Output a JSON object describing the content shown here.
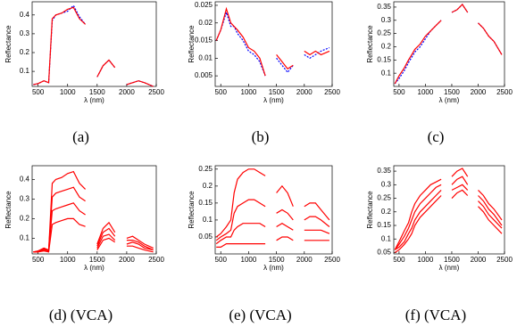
{
  "chart_data": [
    {
      "type": "line",
      "caption": "(a)",
      "xlabel": "λ (nm)",
      "ylabel": "Reflectance",
      "x": [
        420,
        500,
        600,
        680,
        740,
        800,
        900,
        1000,
        1100,
        1200,
        1300,
        1400,
        1500,
        1600,
        1700,
        1800,
        1900,
        2000,
        2100,
        2200,
        2300,
        2450
      ],
      "xlim": [
        400,
        2500
      ],
      "xticks": [
        500,
        1000,
        1500,
        2000,
        2500
      ],
      "ylim": [
        0.02,
        0.47
      ],
      "yticks": [
        0.1,
        0.2,
        0.3,
        0.4
      ],
      "series": [
        {
          "color": "#0000ff",
          "style": "dashed",
          "values": [
            0.03,
            0.035,
            0.05,
            0.04,
            0.37,
            0.4,
            0.41,
            0.42,
            0.45,
            0.39,
            0.35,
            null,
            0.07,
            0.13,
            0.16,
            0.12,
            null,
            0.03,
            0.04,
            0.05,
            0.04,
            0.02
          ]
        },
        {
          "color": "#ff0000",
          "style": "solid",
          "values": [
            0.03,
            0.035,
            0.05,
            0.04,
            0.38,
            0.4,
            0.41,
            0.43,
            0.44,
            0.38,
            0.35,
            null,
            0.07,
            0.13,
            0.16,
            0.12,
            null,
            0.03,
            0.04,
            0.05,
            0.04,
            0.02
          ]
        }
      ]
    },
    {
      "type": "line",
      "caption": "(b)",
      "xlabel": "λ (nm)",
      "ylabel": "Reflectance",
      "x": [
        420,
        500,
        600,
        680,
        740,
        800,
        900,
        1000,
        1100,
        1200,
        1300,
        1400,
        1500,
        1600,
        1700,
        1800,
        1900,
        2000,
        2100,
        2200,
        2300,
        2450
      ],
      "xlim": [
        400,
        2500
      ],
      "xticks": [
        500,
        1000,
        1500,
        2000,
        2500
      ],
      "ylim": [
        0.002,
        0.026
      ],
      "yticks": [
        0.005,
        0.01,
        0.015,
        0.02,
        0.025
      ],
      "series": [
        {
          "color": "#0000ff",
          "style": "dashed",
          "values": [
            0.015,
            0.018,
            0.023,
            0.019,
            0.019,
            0.017,
            0.015,
            0.012,
            0.011,
            0.009,
            0.005,
            null,
            0.01,
            0.008,
            0.006,
            0.008,
            null,
            0.011,
            0.01,
            0.011,
            0.012,
            0.013
          ]
        },
        {
          "color": "#ff0000",
          "style": "solid",
          "values": [
            0.015,
            0.018,
            0.024,
            0.02,
            0.019,
            0.018,
            0.016,
            0.013,
            0.012,
            0.01,
            0.005,
            null,
            0.011,
            0.009,
            0.007,
            0.008,
            null,
            0.012,
            0.011,
            0.012,
            0.011,
            0.012
          ]
        }
      ]
    },
    {
      "type": "line",
      "caption": "(c)",
      "xlabel": "λ (nm)",
      "ylabel": "Reflectance",
      "x": [
        420,
        500,
        600,
        680,
        740,
        800,
        900,
        1000,
        1100,
        1200,
        1300,
        1400,
        1500,
        1600,
        1700,
        1800,
        1900,
        2000,
        2100,
        2200,
        2300,
        2450
      ],
      "xlim": [
        400,
        2500
      ],
      "xticks": [
        500,
        1000,
        1500,
        2000,
        2500
      ],
      "ylim": [
        0.05,
        0.37
      ],
      "yticks": [
        0.1,
        0.15,
        0.2,
        0.25,
        0.3,
        0.35
      ],
      "series": [
        {
          "color": "#0000ff",
          "style": "dashed",
          "values": [
            0.06,
            0.08,
            0.11,
            0.14,
            0.16,
            0.18,
            0.2,
            0.23,
            0.26,
            0.28,
            0.3,
            null,
            0.33,
            0.34,
            0.36,
            0.33,
            null,
            0.29,
            0.27,
            0.24,
            0.22,
            0.17
          ]
        },
        {
          "color": "#ff0000",
          "style": "solid",
          "values": [
            0.06,
            0.09,
            0.12,
            0.15,
            0.17,
            0.19,
            0.21,
            0.24,
            0.26,
            0.28,
            0.3,
            null,
            0.33,
            0.34,
            0.36,
            0.33,
            null,
            0.29,
            0.27,
            0.24,
            0.22,
            0.17
          ]
        }
      ]
    },
    {
      "type": "line",
      "caption": "(d) (VCA)",
      "xlabel": "λ (nm)",
      "ylabel": "Reflectance",
      "x": [
        420,
        500,
        600,
        680,
        740,
        800,
        900,
        1000,
        1100,
        1200,
        1300,
        1400,
        1500,
        1600,
        1700,
        1800,
        1900,
        2000,
        2100,
        2200,
        2300,
        2450
      ],
      "xlim": [
        400,
        2500
      ],
      "xticks": [
        500,
        1000,
        1500,
        2000,
        2500
      ],
      "ylim": [
        0.02,
        0.47
      ],
      "yticks": [
        0.1,
        0.2,
        0.3,
        0.4
      ],
      "series": [
        {
          "color": "#ff0000",
          "style": "solid",
          "values": [
            0.03,
            0.035,
            0.05,
            0.04,
            0.38,
            0.4,
            0.41,
            0.43,
            0.44,
            0.38,
            0.35,
            null,
            0.07,
            0.15,
            0.18,
            0.13,
            null,
            0.1,
            0.11,
            0.09,
            0.07,
            0.05
          ]
        },
        {
          "color": "#ff0000",
          "style": "solid",
          "values": [
            0.03,
            0.035,
            0.045,
            0.04,
            0.31,
            0.33,
            0.34,
            0.35,
            0.36,
            0.31,
            0.29,
            null,
            0.06,
            0.13,
            0.15,
            0.11,
            null,
            0.09,
            0.09,
            0.08,
            0.06,
            0.04
          ]
        },
        {
          "color": "#ff0000",
          "style": "solid",
          "values": [
            0.03,
            0.03,
            0.04,
            0.035,
            0.24,
            0.25,
            0.26,
            0.27,
            0.28,
            0.24,
            0.22,
            null,
            0.05,
            0.11,
            0.12,
            0.09,
            null,
            0.07,
            0.08,
            0.07,
            0.05,
            0.04
          ]
        },
        {
          "color": "#ff0000",
          "style": "solid",
          "values": [
            0.03,
            0.03,
            0.035,
            0.03,
            0.17,
            0.18,
            0.19,
            0.2,
            0.2,
            0.17,
            0.16,
            null,
            0.04,
            0.09,
            0.1,
            0.08,
            null,
            0.06,
            0.06,
            0.05,
            0.04,
            0.03
          ]
        }
      ]
    },
    {
      "type": "line",
      "caption": "(e) (VCA)",
      "xlabel": "λ (nm)",
      "ylabel": "Reflectance",
      "x": [
        420,
        500,
        600,
        680,
        740,
        800,
        900,
        1000,
        1100,
        1200,
        1300,
        1400,
        1500,
        1600,
        1700,
        1800,
        1900,
        2000,
        2100,
        2200,
        2300,
        2450
      ],
      "xlim": [
        400,
        2500
      ],
      "xticks": [
        500,
        1000,
        1500,
        2000,
        2500
      ],
      "ylim": [
        0,
        0.26
      ],
      "yticks": [
        0.05,
        0.1,
        0.15,
        0.2,
        0.25
      ],
      "series": [
        {
          "color": "#ff0000",
          "style": "solid",
          "values": [
            0.05,
            0.06,
            0.08,
            0.1,
            0.18,
            0.22,
            0.24,
            0.25,
            0.25,
            0.24,
            0.23,
            null,
            0.18,
            0.2,
            0.18,
            0.14,
            null,
            0.14,
            0.15,
            0.15,
            0.13,
            0.1
          ]
        },
        {
          "color": "#ff0000",
          "style": "solid",
          "values": [
            0.04,
            0.05,
            0.06,
            0.07,
            0.12,
            0.14,
            0.15,
            0.16,
            0.16,
            0.15,
            0.14,
            null,
            0.12,
            0.13,
            0.12,
            0.1,
            null,
            0.1,
            0.11,
            0.11,
            0.1,
            0.08
          ]
        },
        {
          "color": "#ff0000",
          "style": "solid",
          "values": [
            0.03,
            0.04,
            0.05,
            0.05,
            0.07,
            0.08,
            0.09,
            0.09,
            0.09,
            0.09,
            0.08,
            null,
            0.08,
            0.09,
            0.08,
            0.07,
            null,
            0.07,
            0.07,
            0.07,
            0.07,
            0.06
          ]
        },
        {
          "color": "#ff0000",
          "style": "solid",
          "values": [
            0.02,
            0.02,
            0.03,
            0.03,
            0.03,
            0.03,
            0.03,
            0.03,
            0.03,
            0.03,
            0.03,
            null,
            0.04,
            0.05,
            0.05,
            0.04,
            null,
            0.04,
            0.04,
            0.04,
            0.04,
            0.04
          ]
        }
      ]
    },
    {
      "type": "line",
      "caption": "(f) (VCA)",
      "xlabel": "λ (nm)",
      "ylabel": "Reflectance",
      "x": [
        420,
        500,
        600,
        680,
        740,
        800,
        900,
        1000,
        1100,
        1200,
        1300,
        1400,
        1500,
        1600,
        1700,
        1800,
        1900,
        2000,
        2100,
        2200,
        2300,
        2450
      ],
      "xlim": [
        400,
        2500
      ],
      "xticks": [
        500,
        1000,
        1500,
        2000,
        2500
      ],
      "ylim": [
        0.045,
        0.37
      ],
      "yticks": [
        0.05,
        0.1,
        0.15,
        0.2,
        0.25,
        0.3,
        0.35
      ],
      "series": [
        {
          "color": "#ff0000",
          "style": "solid",
          "values": [
            0.06,
            0.09,
            0.13,
            0.16,
            0.2,
            0.23,
            0.26,
            0.28,
            0.3,
            0.31,
            0.32,
            null,
            0.33,
            0.35,
            0.36,
            0.33,
            null,
            0.28,
            0.26,
            0.23,
            0.21,
            0.17
          ]
        },
        {
          "color": "#ff0000",
          "style": "solid",
          "values": [
            0.06,
            0.08,
            0.11,
            0.14,
            0.17,
            0.2,
            0.23,
            0.25,
            0.27,
            0.29,
            0.3,
            null,
            0.3,
            0.32,
            0.33,
            0.3,
            null,
            0.26,
            0.24,
            0.21,
            0.19,
            0.15
          ]
        },
        {
          "color": "#ff0000",
          "style": "solid",
          "values": [
            0.06,
            0.07,
            0.09,
            0.12,
            0.14,
            0.17,
            0.2,
            0.22,
            0.24,
            0.26,
            0.28,
            null,
            0.28,
            0.29,
            0.3,
            0.28,
            null,
            0.24,
            0.22,
            0.19,
            0.17,
            0.14
          ]
        },
        {
          "color": "#ff0000",
          "style": "solid",
          "values": [
            0.05,
            0.06,
            0.08,
            0.1,
            0.12,
            0.15,
            0.18,
            0.2,
            0.22,
            0.24,
            0.26,
            null,
            0.25,
            0.27,
            0.28,
            0.26,
            null,
            0.22,
            0.2,
            0.17,
            0.15,
            0.12
          ]
        }
      ]
    }
  ]
}
